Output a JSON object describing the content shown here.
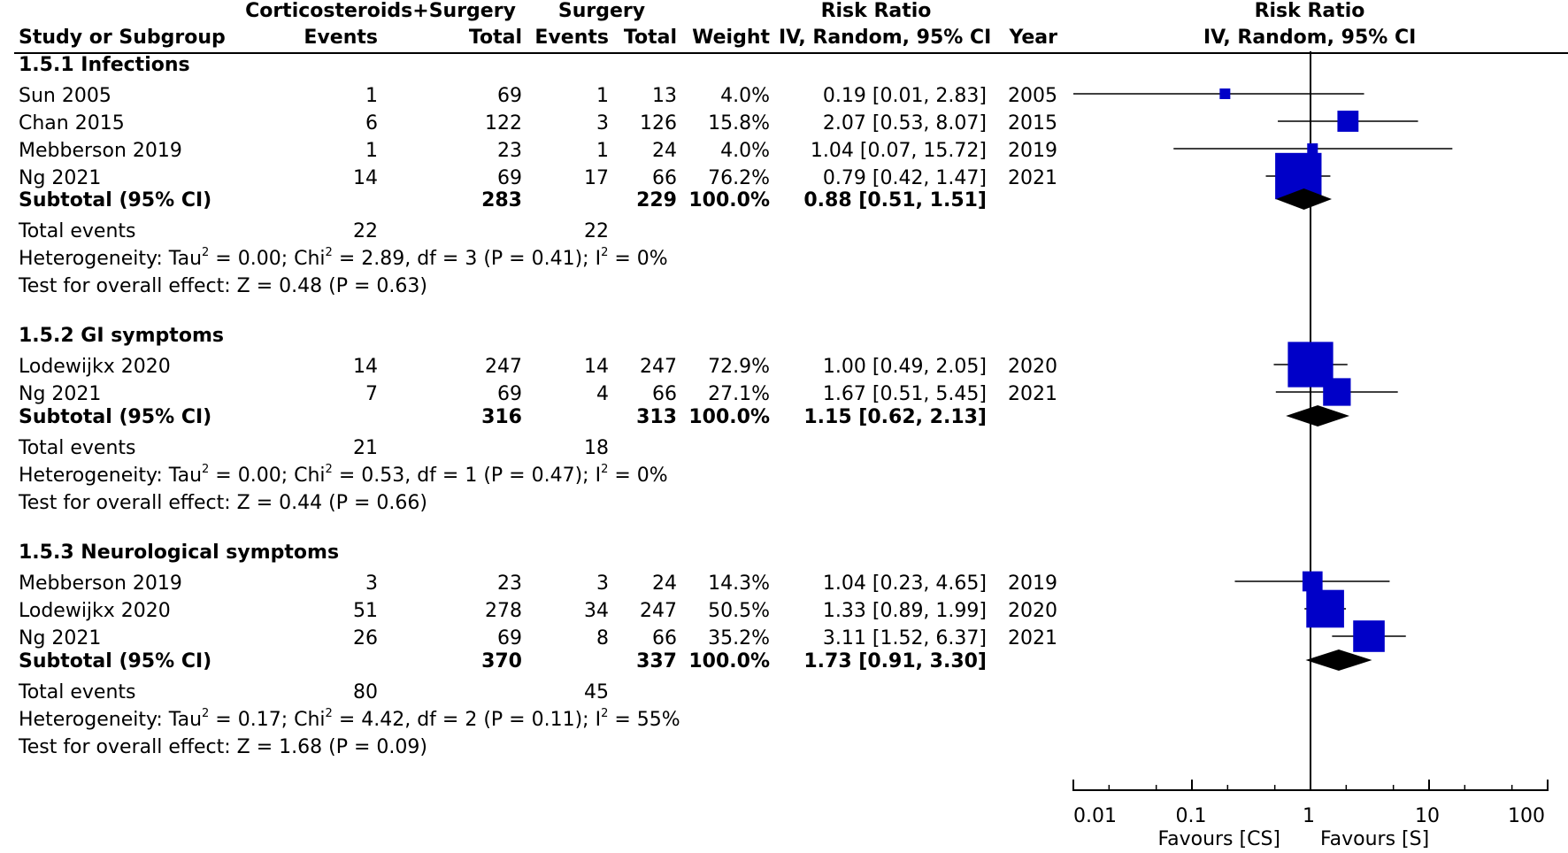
{
  "header": {
    "group1": "Corticosteroids+Surgery",
    "group2": "Surgery",
    "rr_top": "Risk Ratio",
    "rr_sub": "IV, Random, 95% CI",
    "rr_plot_top": "Risk Ratio",
    "rr_plot_sub": "IV, Random, 95% CI",
    "col_study": "Study or Subgroup",
    "col_events1": "Events",
    "col_total1": "Total",
    "col_events2": "Events",
    "col_total2": "Total",
    "col_weight": "Weight",
    "col_year": "Year"
  },
  "subgroups": [
    {
      "title": "1.5.1 Infections",
      "studies": [
        {
          "name": "Sun 2005",
          "e1": "1",
          "t1": "69",
          "e2": "1",
          "t2": "13",
          "w": "4.0%",
          "ci": "0.19 [0.01, 2.83]",
          "year": "2005"
        },
        {
          "name": "Chan 2015",
          "e1": "6",
          "t1": "122",
          "e2": "3",
          "t2": "126",
          "w": "15.8%",
          "ci": "2.07 [0.53, 8.07]",
          "year": "2015"
        },
        {
          "name": "Mebberson 2019",
          "e1": "1",
          "t1": "23",
          "e2": "1",
          "t2": "24",
          "w": "4.0%",
          "ci": "1.04 [0.07, 15.72]",
          "year": "2019"
        },
        {
          "name": "Ng 2021",
          "e1": "14",
          "t1": "69",
          "e2": "17",
          "t2": "66",
          "w": "76.2%",
          "ci": "0.79 [0.42, 1.47]",
          "year": "2021"
        }
      ],
      "subtotal": {
        "label": "Subtotal (95% CI)",
        "t1": "283",
        "t2": "229",
        "w": "100.0%",
        "ci": "0.88 [0.51, 1.51]"
      },
      "total_events": {
        "label": "Total events",
        "e1": "22",
        "e2": "22"
      },
      "het_pre": "Heterogeneity: Tau",
      "het_mid1": " = 0.00; Chi",
      "het_mid2": " = 2.89, df = 3 (P = 0.41); I",
      "het_post": " = 0%",
      "test": "Test for overall effect: Z = 0.48 (P = 0.63)"
    },
    {
      "title": "1.5.2 GI symptoms",
      "studies": [
        {
          "name": "Lodewijkx 2020",
          "e1": "14",
          "t1": "247",
          "e2": "14",
          "t2": "247",
          "w": "72.9%",
          "ci": "1.00 [0.49, 2.05]",
          "year": "2020"
        },
        {
          "name": "Ng 2021",
          "e1": "7",
          "t1": "69",
          "e2": "4",
          "t2": "66",
          "w": "27.1%",
          "ci": "1.67 [0.51, 5.45]",
          "year": "2021"
        }
      ],
      "subtotal": {
        "label": "Subtotal (95% CI)",
        "t1": "316",
        "t2": "313",
        "w": "100.0%",
        "ci": "1.15 [0.62, 2.13]"
      },
      "total_events": {
        "label": "Total events",
        "e1": "21",
        "e2": "18"
      },
      "het_pre": "Heterogeneity: Tau",
      "het_mid1": " = 0.00; Chi",
      "het_mid2": " = 0.53, df = 1 (P = 0.47); I",
      "het_post": " = 0%",
      "test": "Test for overall effect: Z = 0.44 (P = 0.66)"
    },
    {
      "title": "1.5.3 Neurological symptoms",
      "studies": [
        {
          "name": "Mebberson 2019",
          "e1": "3",
          "t1": "23",
          "e2": "3",
          "t2": "24",
          "w": "14.3%",
          "ci": "1.04 [0.23, 4.65]",
          "year": "2019"
        },
        {
          "name": "Lodewijkx 2020",
          "e1": "51",
          "t1": "278",
          "e2": "34",
          "t2": "247",
          "w": "50.5%",
          "ci": "1.33 [0.89, 1.99]",
          "year": "2020"
        },
        {
          "name": "Ng 2021",
          "e1": "26",
          "t1": "69",
          "e2": "8",
          "t2": "66",
          "w": "35.2%",
          "ci": "3.11 [1.52, 6.37]",
          "year": "2021"
        }
      ],
      "subtotal": {
        "label": "Subtotal (95% CI)",
        "t1": "370",
        "t2": "337",
        "w": "100.0%",
        "ci": "1.73 [0.91, 3.30]"
      },
      "total_events": {
        "label": "Total events",
        "e1": "80",
        "e2": "45"
      },
      "het_pre": "Heterogeneity: Tau",
      "het_mid1": " = 0.17; Chi",
      "het_mid2": " = 4.42, df = 2 (P = 0.11); I",
      "het_post": " = 55%",
      "test": "Test for overall effect: Z = 1.68 (P = 0.09)"
    }
  ],
  "sup2": "2",
  "axis": {
    "ticks": [
      "0.01",
      "0.1",
      "1",
      "10",
      "100"
    ],
    "left_label": "Favours [CS]",
    "right_label": "Favours [S]"
  },
  "chart_data": {
    "type": "forest",
    "scale": "log",
    "xlim": [
      0.01,
      100
    ],
    "x_ticks": [
      0.01,
      0.1,
      1,
      10,
      100
    ],
    "null_line": 1,
    "marker_color": "#0000c8",
    "groups": [
      {
        "name": "1.5.1 Infections",
        "studies": [
          {
            "study": "Sun 2005",
            "rr": 0.19,
            "lo": 0.01,
            "hi": 2.83,
            "weight": 4.0
          },
          {
            "study": "Chan 2015",
            "rr": 2.07,
            "lo": 0.53,
            "hi": 8.07,
            "weight": 15.8
          },
          {
            "study": "Mebberson 2019",
            "rr": 1.04,
            "lo": 0.07,
            "hi": 15.72,
            "weight": 4.0
          },
          {
            "study": "Ng 2021",
            "rr": 0.79,
            "lo": 0.42,
            "hi": 1.47,
            "weight": 76.2
          }
        ],
        "pooled": {
          "rr": 0.88,
          "lo": 0.51,
          "hi": 1.51
        }
      },
      {
        "name": "1.5.2 GI symptoms",
        "studies": [
          {
            "study": "Lodewijkx 2020",
            "rr": 1.0,
            "lo": 0.49,
            "hi": 2.05,
            "weight": 72.9
          },
          {
            "study": "Ng 2021",
            "rr": 1.67,
            "lo": 0.51,
            "hi": 5.45,
            "weight": 27.1
          }
        ],
        "pooled": {
          "rr": 1.15,
          "lo": 0.62,
          "hi": 2.13
        }
      },
      {
        "name": "1.5.3 Neurological symptoms",
        "studies": [
          {
            "study": "Mebberson 2019",
            "rr": 1.04,
            "lo": 0.23,
            "hi": 4.65,
            "weight": 14.3
          },
          {
            "study": "Lodewijkx 2020",
            "rr": 1.33,
            "lo": 0.89,
            "hi": 1.99,
            "weight": 50.5
          },
          {
            "study": "Ng 2021",
            "rr": 3.11,
            "lo": 1.52,
            "hi": 6.37,
            "weight": 35.2
          }
        ],
        "pooled": {
          "rr": 1.73,
          "lo": 0.91,
          "hi": 3.3
        }
      }
    ]
  }
}
